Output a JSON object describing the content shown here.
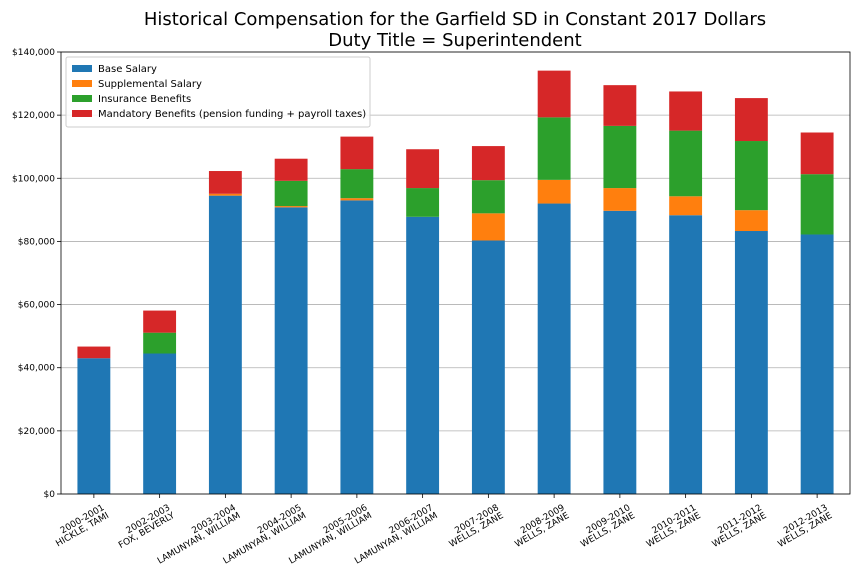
{
  "chart_data": {
    "type": "bar",
    "stacked": true,
    "title": "Historical Compensation for the Garfield SD in Constant 2017 Dollars",
    "subtitle": "Duty Title = Superintendent",
    "xlabel": "",
    "ylabel": "",
    "ylim": [
      0,
      140000
    ],
    "yticks": [
      0,
      20000,
      40000,
      60000,
      80000,
      100000,
      120000,
      140000
    ],
    "ytick_labels": [
      "$0",
      "$20,000",
      "$40,000",
      "$60,000",
      "$80,000",
      "$100,000",
      "$120,000",
      "$140,000"
    ],
    "grid": "horizontal",
    "legend_position": "top-left",
    "categories": [
      [
        "2000-2001",
        "HICKLE, TAMI"
      ],
      [
        "2002-2003",
        "FOX, BEVERLY"
      ],
      [
        "2003-2004",
        "LAMUNYAN, WILLIAM"
      ],
      [
        "2004-2005",
        "LAMUNYAN, WILLIAM"
      ],
      [
        "2005-2006",
        "LAMUNYAN, WILLIAM"
      ],
      [
        "2006-2007",
        "LAMUNYAN, WILLIAM"
      ],
      [
        "2007-2008",
        "WELLS, ZANE"
      ],
      [
        "2008-2009",
        "WELLS, ZANE"
      ],
      [
        "2009-2010",
        "WELLS, ZANE"
      ],
      [
        "2010-2011",
        "WELLS, ZANE"
      ],
      [
        "2011-2012",
        "WELLS, ZANE"
      ],
      [
        "2012-2013",
        "WELLS, ZANE"
      ]
    ],
    "series": [
      {
        "name": "Base Salary",
        "color": "#1f77b4",
        "values": [
          43000,
          44500,
          94500,
          90800,
          93000,
          87800,
          80300,
          92000,
          89700,
          88300,
          83300,
          82200
        ]
      },
      {
        "name": "Supplemental Salary",
        "color": "#ff7f0e",
        "values": [
          0,
          0,
          600,
          400,
          700,
          0,
          8600,
          7500,
          7200,
          6000,
          6600,
          0
        ]
      },
      {
        "name": "Insurance Benefits",
        "color": "#2ca02c",
        "values": [
          0,
          6600,
          0,
          8000,
          9200,
          9100,
          10500,
          19800,
          19700,
          20800,
          21900,
          19100
        ]
      },
      {
        "name": "Mandatory Benefits (pension funding + payroll taxes)",
        "color": "#d62728",
        "values": [
          3700,
          7000,
          7200,
          7000,
          10300,
          12300,
          10800,
          14800,
          12900,
          12400,
          13600,
          13200
        ]
      }
    ]
  }
}
